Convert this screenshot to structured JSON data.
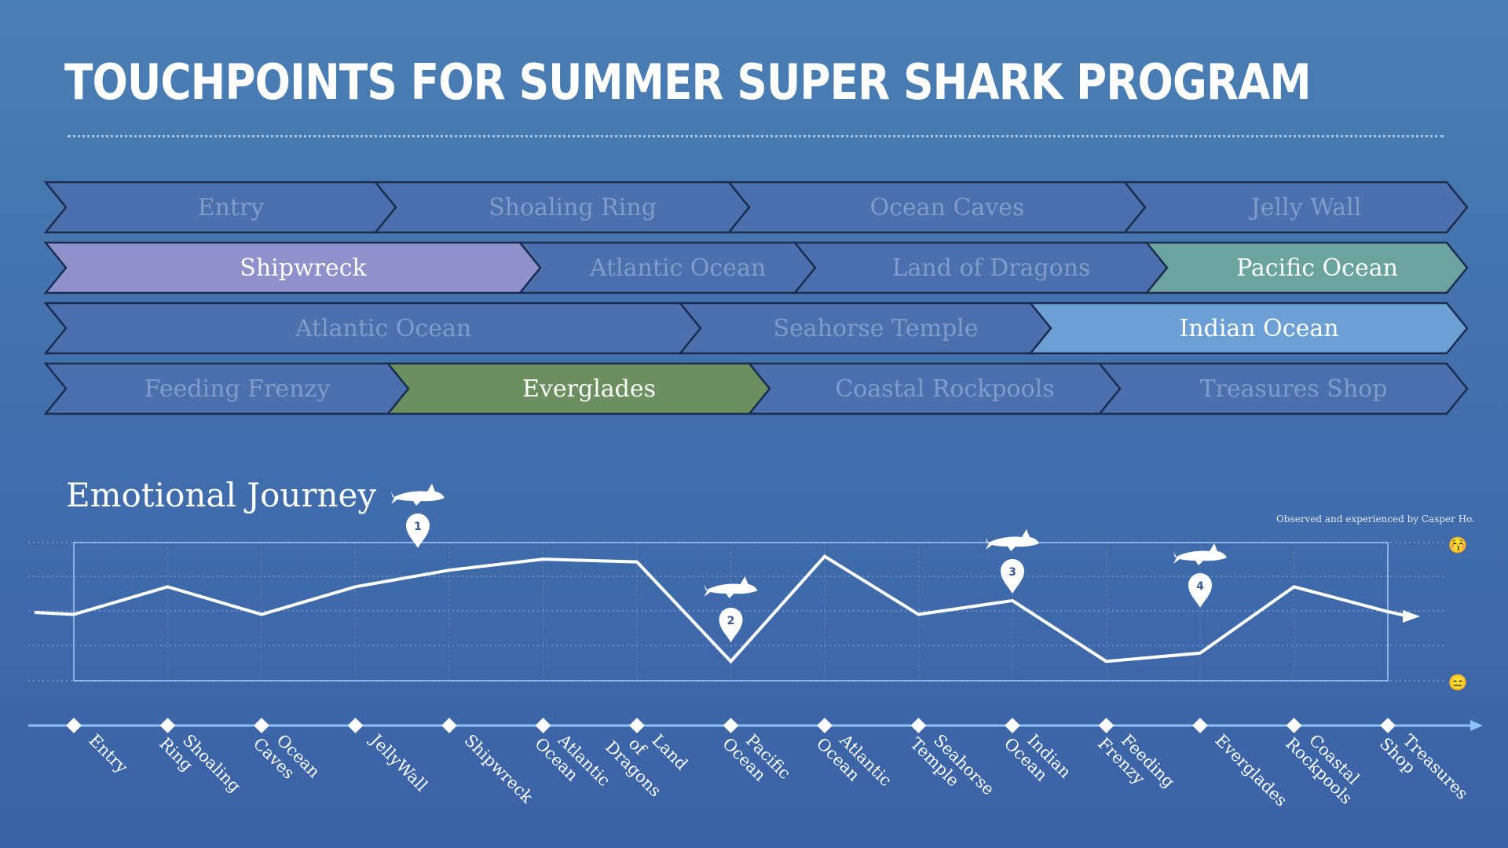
{
  "title": "TOUCHPOINTS FOR SUMMER SUPER SHARK PROGRAM",
  "colors": {
    "inactive_fill": "#4c6fae",
    "inactive_text": "#7f9ccb",
    "shipwreck": "#8f92ca",
    "pacific": "#6ba39f",
    "indian": "#6ca0d5",
    "everglades": "#6c8f5f",
    "line": "#ffffff",
    "axis": "#8ec1f2"
  },
  "touchpoint_rows": [
    [
      {
        "label": "Entry",
        "active": false
      },
      {
        "label": "Shoaling Ring",
        "active": false
      },
      {
        "label": "Ocean Caves",
        "active": false
      },
      {
        "label": "Jelly Wall",
        "active": false
      }
    ],
    [
      {
        "label": "Shipwreck",
        "active": true,
        "color": "shipwreck"
      },
      {
        "label": "Atlantic Ocean",
        "active": false
      },
      {
        "label": "Land of Dragons",
        "active": false
      },
      {
        "label": "Pacific Ocean",
        "active": true,
        "color": "pacific"
      }
    ],
    [
      {
        "label": "Atlantic Ocean",
        "active": false
      },
      {
        "label": "Seahorse Temple",
        "active": false
      },
      {
        "label": "Indian Ocean",
        "active": true,
        "color": "indian"
      }
    ],
    [
      {
        "label": "Feeding Frenzy",
        "active": false
      },
      {
        "label": "Everglades",
        "active": true,
        "color": "everglades"
      },
      {
        "label": "Coastal Rockpools",
        "active": false
      },
      {
        "label": "Treasures Shop",
        "active": false
      }
    ]
  ],
  "journey": {
    "title": "Emotional Journey",
    "credit": "Observed and experienced by Casper Ho.",
    "top_emoji": "😚",
    "bottom_emoji": "😑"
  },
  "chart_data": {
    "type": "line",
    "title": "Emotional Journey",
    "categories": [
      "Entry",
      "Shoaling Ring",
      "Ocean Caves",
      "JellyWall",
      "Shipwreck",
      "Atlantic Ocean",
      "Land of Dragons",
      "Pacific Ocean",
      "Atlantic Ocean",
      "Seahorse Temple",
      "Indian Ocean",
      "Feeding Frenzy",
      "Everglades",
      "Coastal Rockpools",
      "Treasures Shop"
    ],
    "values": [
      2.4,
      3.4,
      2.4,
      3.4,
      4.0,
      4.4,
      4.3,
      0.7,
      4.5,
      2.4,
      2.9,
      0.7,
      1.0,
      3.4,
      2.5
    ],
    "ylim": [
      0,
      5
    ],
    "markers": [
      {
        "label": "1",
        "category_index": 4
      },
      {
        "label": "2",
        "category_index": 7
      },
      {
        "label": "3",
        "category_index": 10
      },
      {
        "label": "4",
        "category_index": 12
      }
    ],
    "grid": true
  }
}
